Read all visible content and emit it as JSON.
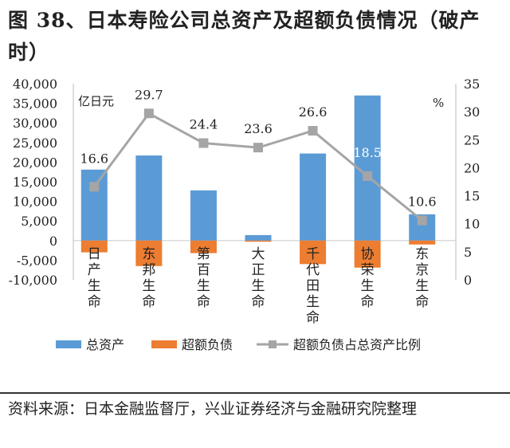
{
  "title": "图 38、日本寿险公司总资产及超额负债情况（破产时）",
  "source": "资料来源：日本金融监督厅，兴业证券经济与金融研究院整理",
  "chart_data": {
    "type": "bar+line",
    "categories": [
      "日产生命",
      "东邦生命",
      "第百生命",
      "大正生命",
      "千代田生命",
      "协荣生命",
      "东京生命"
    ],
    "series": [
      {
        "name": "总资产",
        "type": "bar",
        "axis": "left",
        "color": "#5B9BD5",
        "values": [
          18100,
          21700,
          12800,
          1400,
          22200,
          37000,
          6700
        ]
      },
      {
        "name": "超额负债",
        "type": "bar",
        "axis": "left",
        "color": "#ED7D31",
        "values": [
          -3000,
          -6500,
          -3200,
          -300,
          -6000,
          -6900,
          -1000
        ]
      },
      {
        "name": "超额负债占总资产比例",
        "type": "line",
        "axis": "right",
        "color": "#A5A5A5",
        "values": [
          16.6,
          29.7,
          24.4,
          23.6,
          26.6,
          18.5,
          10.6
        ],
        "labels": [
          "16.6",
          "29.7",
          "24.4",
          "23.6",
          "26.6",
          "18.5",
          "10.6"
        ]
      }
    ],
    "left_axis": {
      "unit": "亿日元",
      "range": [
        -10000,
        40000
      ],
      "ticks": [
        "40,000",
        "35,000",
        "30,000",
        "25,000",
        "20,000",
        "15,000",
        "10,000",
        "5,000",
        "0",
        "-5,000",
        "-10,000"
      ]
    },
    "right_axis": {
      "unit": "%",
      "range": [
        0,
        35
      ],
      "ticks": [
        "35",
        "30",
        "25",
        "20",
        "15",
        "10",
        "5",
        "0"
      ]
    },
    "legend_position": "bottom",
    "grid": false
  }
}
